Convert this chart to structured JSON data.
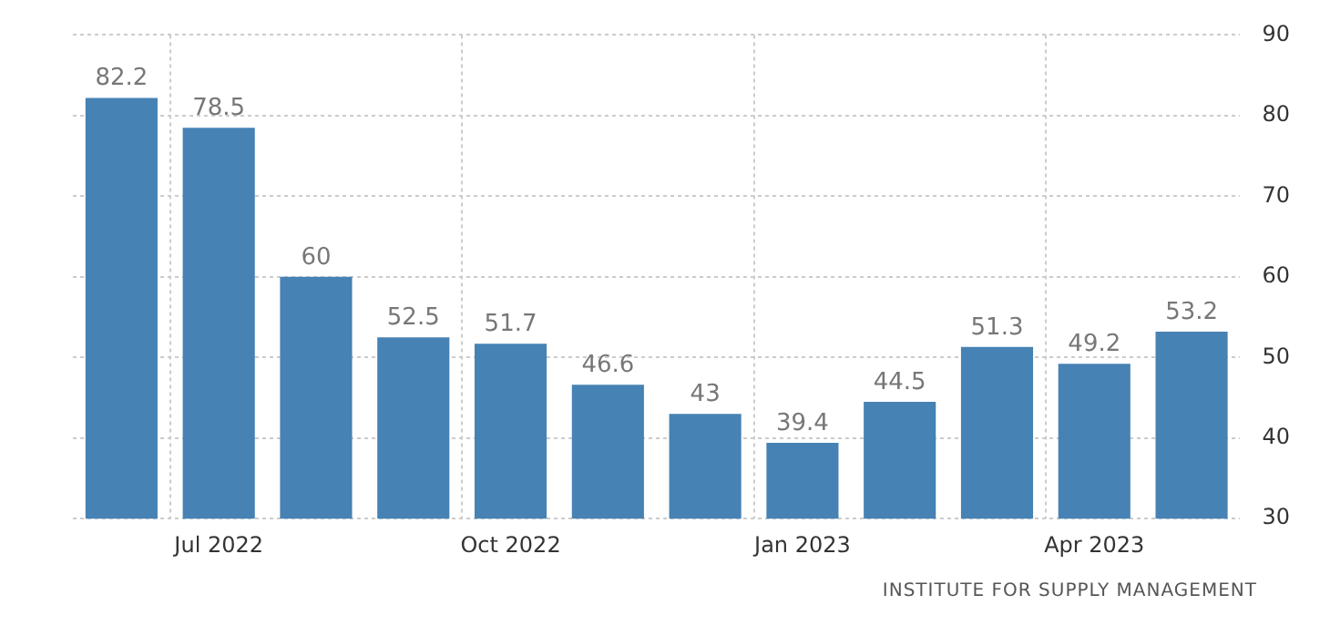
{
  "chart_data": {
    "type": "bar",
    "categories": [
      null,
      "Jul 2022",
      null,
      null,
      "Oct 2022",
      null,
      null,
      "Jan 2023",
      null,
      null,
      "Apr 2023",
      null
    ],
    "values": [
      82.2,
      78.5,
      60,
      52.5,
      51.7,
      46.6,
      43,
      39.4,
      44.5,
      51.3,
      49.2,
      53.2
    ],
    "color": "#4682b4",
    "ylim": [
      30,
      90
    ],
    "yticks": [
      30,
      40,
      50,
      60,
      70,
      80,
      90
    ],
    "grid": true,
    "data_labels": true,
    "annotations": [
      "INSTITUTE FOR SUPPLY MANAGEMENT"
    ]
  }
}
